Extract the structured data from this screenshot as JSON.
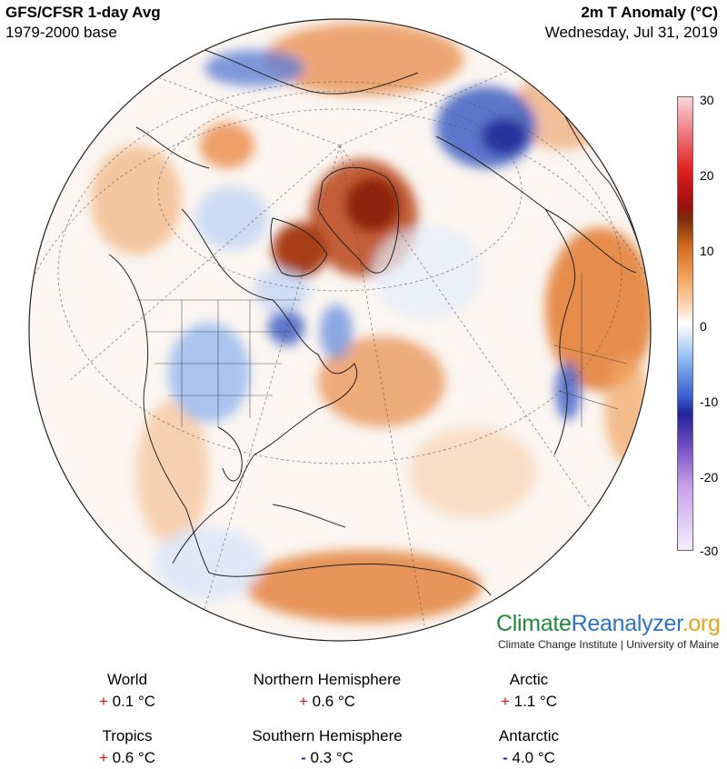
{
  "header": {
    "title_left": "GFS/CFSR 1-day Avg",
    "subtitle_left": "1979-2000 base",
    "title_right": "2m T Anomaly (°C)",
    "subtitle_right": "Wednesday, Jul 31, 2019"
  },
  "colorbar": {
    "ticks": [
      "30",
      "20",
      "10",
      "0",
      "-10",
      "-20",
      "-30"
    ],
    "range": [
      -30,
      30
    ]
  },
  "branding": {
    "part1": "Climate",
    "part2": "Reanalyzer",
    "part3": ".org",
    "institute": "Climate Change Institute | University of Maine"
  },
  "stats": [
    {
      "label": "World",
      "sign": "+",
      "value": "0.1 °C"
    },
    {
      "label": "Northern Hemisphere",
      "sign": "+",
      "value": "0.6 °C"
    },
    {
      "label": "Arctic",
      "sign": "+",
      "value": "1.1 °C"
    },
    {
      "label": "Tropics",
      "sign": "+",
      "value": "0.6 °C"
    },
    {
      "label": "Southern Hemisphere",
      "sign": "-",
      "value": "0.3 °C"
    },
    {
      "label": "Antarctic",
      "sign": "-",
      "value": "4.0 °C"
    }
  ],
  "colors": {
    "warm": "#e07a2a",
    "hot": "#a3280a",
    "cold": "#3c5cc8",
    "neutral": "#ffffff"
  }
}
